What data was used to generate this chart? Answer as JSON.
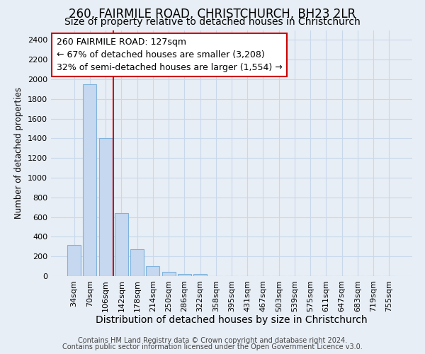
{
  "title": "260, FAIRMILE ROAD, CHRISTCHURCH, BH23 2LR",
  "subtitle": "Size of property relative to detached houses in Christchurch",
  "xlabel": "Distribution of detached houses by size in Christchurch",
  "ylabel": "Number of detached properties",
  "footnote1": "Contains HM Land Registry data © Crown copyright and database right 2024.",
  "footnote2": "Contains public sector information licensed under the Open Government Licence v3.0.",
  "categories": [
    "34sqm",
    "70sqm",
    "106sqm",
    "142sqm",
    "178sqm",
    "214sqm",
    "250sqm",
    "286sqm",
    "322sqm",
    "358sqm",
    "395sqm",
    "431sqm",
    "467sqm",
    "503sqm",
    "539sqm",
    "575sqm",
    "611sqm",
    "647sqm",
    "683sqm",
    "719sqm",
    "755sqm"
  ],
  "bar_values": [
    320,
    1950,
    1400,
    640,
    270,
    100,
    45,
    25,
    20,
    0,
    0,
    0,
    0,
    0,
    0,
    0,
    0,
    0,
    0,
    0,
    0
  ],
  "bar_color": "#c5d8f0",
  "bar_edge_color": "#7fb3dc",
  "grid_color": "#c8d8eb",
  "background_color": "#e8eef5",
  "axes_bg_color": "#e8eef5",
  "vline_color": "#cc0000",
  "vline_pos": 2.5,
  "annotation_text": "260 FAIRMILE ROAD: 127sqm\n← 67% of detached houses are smaller (3,208)\n32% of semi-detached houses are larger (1,554) →",
  "annotation_box_color": "#ffffff",
  "annotation_box_edge_color": "#cc0000",
  "ylim": [
    0,
    2500
  ],
  "yticks": [
    0,
    200,
    400,
    600,
    800,
    1000,
    1200,
    1400,
    1600,
    1800,
    2000,
    2200,
    2400
  ],
  "title_fontsize": 12,
  "subtitle_fontsize": 10,
  "annotation_fontsize": 9,
  "xlabel_fontsize": 10,
  "ylabel_fontsize": 8.5,
  "tick_fontsize": 8,
  "footnote_fontsize": 7
}
